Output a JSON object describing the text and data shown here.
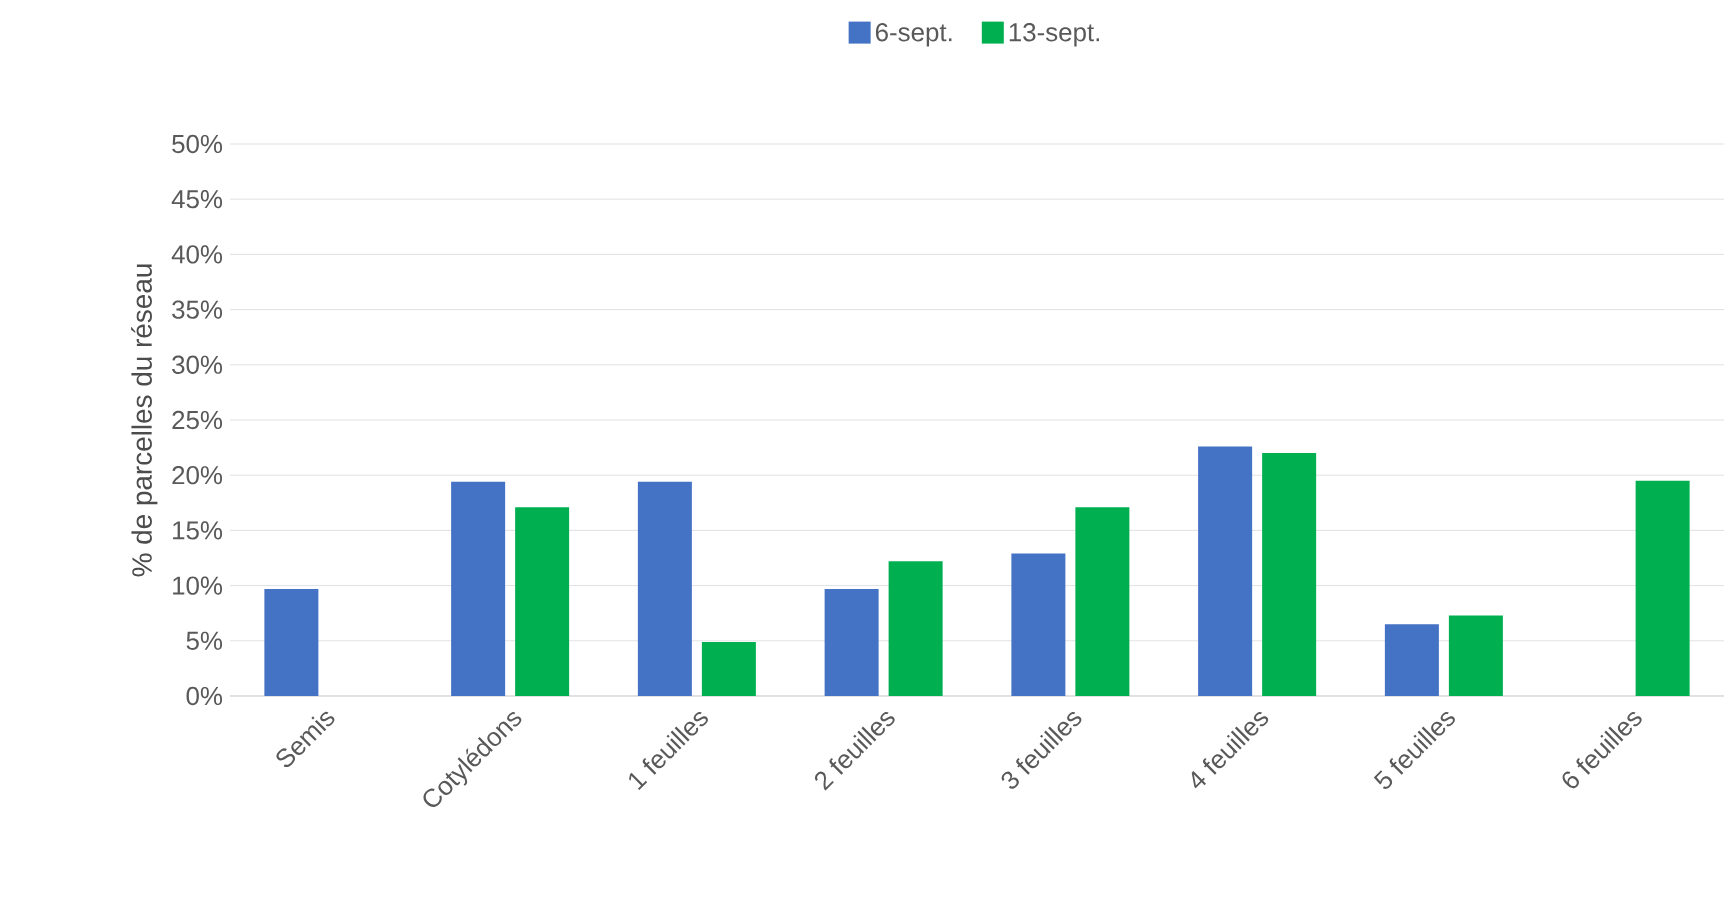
{
  "chart_data": {
    "type": "bar",
    "ylabel": "% de parcelles du réseau",
    "categories": [
      "Semis",
      "Cotylédons",
      "1 feuilles",
      "2 feuilles",
      "3 feuilles",
      "4 feuilles",
      "5 feuilles",
      "6 feuilles"
    ],
    "series": [
      {
        "name": "6-sept.",
        "color": "#4472c4",
        "values": [
          9.7,
          19.4,
          19.4,
          9.7,
          12.9,
          22.6,
          6.5,
          0
        ]
      },
      {
        "name": "13-sept.",
        "color": "#00b050",
        "values": [
          0,
          17.1,
          4.9,
          12.2,
          17.1,
          22.0,
          7.3,
          19.5
        ]
      }
    ],
    "ylim": [
      0,
      50
    ],
    "yticks": [
      {
        "value": 0,
        "label": "0%"
      },
      {
        "value": 5,
        "label": "5%"
      },
      {
        "value": 10,
        "label": "10%"
      },
      {
        "value": 15,
        "label": "15%"
      },
      {
        "value": 20,
        "label": "20%"
      },
      {
        "value": 25,
        "label": "25%"
      },
      {
        "value": 30,
        "label": "30%"
      },
      {
        "value": 35,
        "label": "35%"
      },
      {
        "value": 40,
        "label": "40%"
      },
      {
        "value": 45,
        "label": "45%"
      },
      {
        "value": 50,
        "label": "50%"
      }
    ],
    "grid": "y",
    "legend": "top"
  }
}
